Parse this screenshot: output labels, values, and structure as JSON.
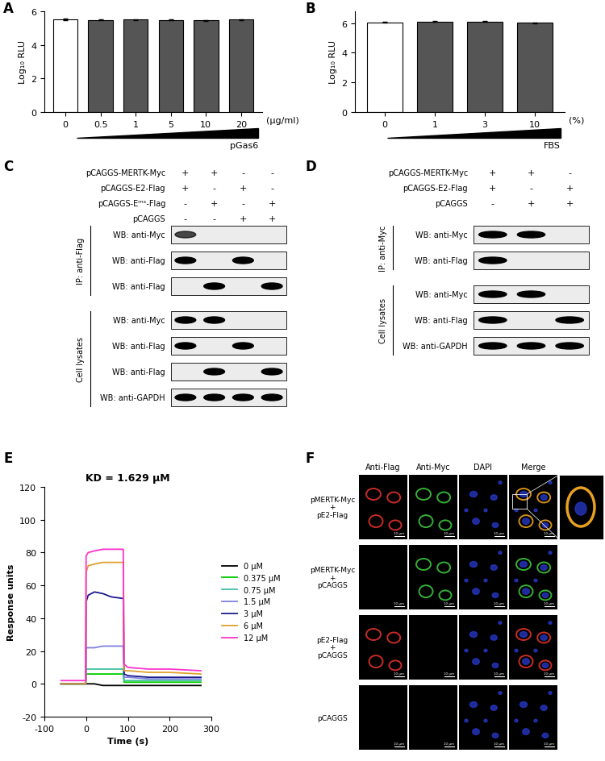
{
  "panel_letters": [
    "A",
    "B",
    "C",
    "D",
    "E",
    "F"
  ],
  "chart_data": [
    {
      "type": "bar",
      "categories": [
        "0",
        "0.5",
        "1",
        "5",
        "10",
        "20"
      ],
      "values": [
        5.52,
        5.48,
        5.5,
        5.48,
        5.46,
        5.5
      ],
      "errors": [
        0.03,
        0.03,
        0.03,
        0.03,
        0.03,
        0.03
      ],
      "colors": [
        "#ffffff",
        "#555555",
        "#555555",
        "#555555",
        "#555555",
        "#555555"
      ],
      "ylabel": "Log₁₀ RLU",
      "xlabel": "pGas6",
      "unit": "(μg/ml)",
      "ylim": [
        0,
        6
      ],
      "yticks": [
        0,
        2,
        4,
        6
      ]
    },
    {
      "type": "bar",
      "categories": [
        "0",
        "1",
        "3",
        "10"
      ],
      "values": [
        6.05,
        6.12,
        6.1,
        6.03
      ],
      "errors": [
        0.03,
        0.03,
        0.03,
        0.03
      ],
      "colors": [
        "#ffffff",
        "#555555",
        "#555555",
        "#555555"
      ],
      "ylabel": "Log₁₀ RLU",
      "xlabel": "FBS",
      "unit": "(%)",
      "ylim": [
        0,
        6.8
      ],
      "yticks": [
        0,
        2,
        4,
        6
      ]
    },
    {
      "type": "line",
      "title": "KD = 1.629 μM",
      "xlabel": "Time (s)",
      "ylabel": "Response units",
      "x": [
        -60,
        -1,
        0,
        5,
        20,
        40,
        60,
        89,
        91,
        100,
        150,
        200,
        275
      ],
      "series": [
        {
          "name": "0 μM",
          "color": "#000000",
          "values": [
            0,
            0,
            0,
            0,
            0,
            -1,
            -1,
            -1,
            -1,
            -1,
            -1,
            -1,
            -1
          ]
        },
        {
          "name": "0.375 μM",
          "color": "#00cc00",
          "values": [
            0,
            0,
            6,
            6,
            6,
            6,
            6,
            6,
            1,
            1,
            1,
            1,
            1
          ]
        },
        {
          "name": "0.75 μM",
          "color": "#40c0a0",
          "values": [
            0,
            0,
            9,
            9,
            9,
            9,
            9,
            9,
            2,
            2,
            2,
            2,
            2
          ]
        },
        {
          "name": "1.5 μM",
          "color": "#8080e0",
          "values": [
            0,
            0,
            22,
            22,
            22,
            23,
            23,
            23,
            4,
            4,
            3,
            3,
            3
          ]
        },
        {
          "name": "3 μM",
          "color": "#1a1a8c",
          "values": [
            0,
            0,
            50,
            54,
            56,
            55,
            53,
            52,
            6,
            5,
            4,
            4,
            4
          ]
        },
        {
          "name": "6 μM",
          "color": "#e0a030",
          "values": [
            0,
            0,
            68,
            72,
            73,
            74,
            74,
            74,
            8,
            8,
            7,
            7,
            6
          ]
        },
        {
          "name": "12 μM",
          "color": "#ff33cc",
          "values": [
            2,
            2,
            78,
            80,
            81,
            82,
            82,
            82,
            12,
            10,
            9,
            9,
            8
          ]
        }
      ],
      "xlim": [
        -100,
        300
      ],
      "xticks": [
        -100,
        0,
        100,
        200,
        300
      ],
      "ylim": [
        -20,
        120
      ],
      "yticks": [
        -20,
        0,
        20,
        40,
        60,
        80,
        100,
        120
      ],
      "legend": "right"
    }
  ],
  "blots": [
    {
      "conditions": [
        {
          "label": "pCAGGS-MERTK-Myc",
          "signs": [
            "+",
            "+",
            "-",
            "-"
          ]
        },
        {
          "label": "pCAGGS-E2-Flag",
          "signs": [
            "+",
            "-",
            "+",
            "-"
          ]
        },
        {
          "label": "pCAGGS-Eʳⁿˢ-Flag",
          "signs": [
            "-",
            "+",
            "-",
            "+"
          ]
        },
        {
          "label": "pCAGGS",
          "signs": [
            "-",
            "-",
            "+",
            "+"
          ]
        }
      ],
      "groups": [
        {
          "label": "IP: anti-Flag",
          "rows": [
            {
              "label": "WB: anti-Myc",
              "bands": [
                0.7,
                0,
                0,
                0
              ]
            },
            {
              "label": "WB: anti-Flag",
              "bands": [
                1,
                0,
                1,
                0
              ]
            },
            {
              "label": "WB: anti-Flag",
              "bands": [
                0,
                1,
                0,
                1
              ]
            }
          ]
        },
        {
          "label": "Cell lysates",
          "rows": [
            {
              "label": "WB: anti-Myc",
              "bands": [
                1,
                1,
                0,
                0
              ]
            },
            {
              "label": "WB: anti-Flag",
              "bands": [
                1,
                0,
                1,
                0
              ]
            },
            {
              "label": "WB: anti-Flag",
              "bands": [
                0,
                1,
                0,
                1
              ]
            },
            {
              "label": "WB: anti-GAPDH",
              "bands": [
                1,
                1,
                1,
                1
              ]
            }
          ]
        }
      ]
    },
    {
      "conditions": [
        {
          "label": "pCAGGS-MERTK-Myc",
          "signs": [
            "+",
            "+",
            "-"
          ]
        },
        {
          "label": "pCAGGS-E2-Flag",
          "signs": [
            "+",
            "-",
            "+"
          ]
        },
        {
          "label": "pCAGGS",
          "signs": [
            "-",
            "+",
            "+"
          ]
        }
      ],
      "groups": [
        {
          "label": "IP: anti-Myc",
          "rows": [
            {
              "label": "WB: anti-Myc",
              "bands": [
                1,
                1,
                0
              ]
            },
            {
              "label": "WB: anti-Flag",
              "bands": [
                1,
                0,
                0
              ]
            }
          ]
        },
        {
          "label": "Cell lysates",
          "rows": [
            {
              "label": "WB: anti-Myc",
              "bands": [
                1,
                1,
                0
              ]
            },
            {
              "label": "WB: anti-Flag",
              "bands": [
                1,
                0,
                1
              ]
            },
            {
              "label": "WB: anti-GAPDH",
              "bands": [
                1,
                1,
                1
              ]
            }
          ]
        }
      ]
    }
  ],
  "microscopy": {
    "columns": [
      "Anti-Flag",
      "Anti-Myc",
      "DAPI",
      "Merge"
    ],
    "scale_bar": "10 μm",
    "rows": [
      {
        "label": [
          "pMERTK-Myc",
          "+",
          "pE2-Flag"
        ],
        "channels": [
          1,
          1,
          1
        ],
        "inset": true
      },
      {
        "label": [
          "pMERTK-Myc",
          "+",
          "pCAGGS"
        ],
        "channels": [
          0,
          1,
          1
        ],
        "inset": false
      },
      {
        "label": [
          "pE2-Flag",
          "+",
          "pCAGGS"
        ],
        "channels": [
          1,
          0,
          1
        ],
        "inset": false
      },
      {
        "label": [
          "pCAGGS"
        ],
        "channels": [
          0,
          0,
          1
        ],
        "inset": false
      }
    ]
  }
}
